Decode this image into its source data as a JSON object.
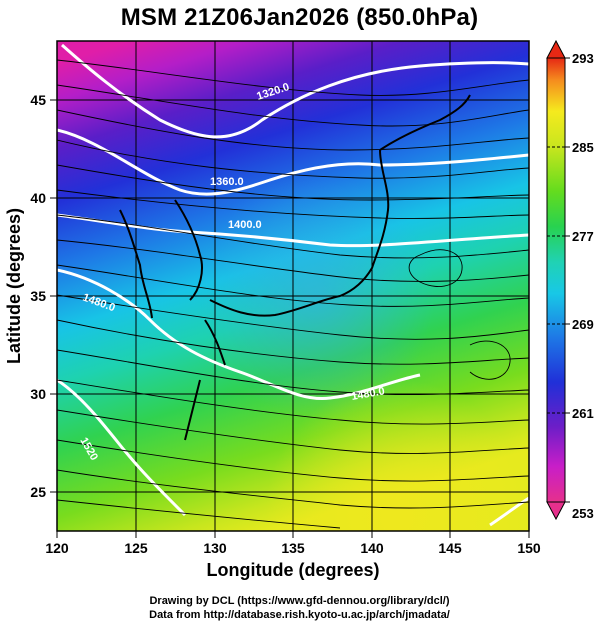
{
  "title": "MSM 21Z06Jan2026 (850.0hPa)",
  "map": {
    "xlabel": "Longitude (degrees)",
    "ylabel": "Latitude  (degrees)",
    "lon_range": [
      120,
      150
    ],
    "lat_range": [
      23,
      48
    ],
    "lon_ticks": [
      "120",
      "125",
      "130",
      "135",
      "140",
      "145",
      "150"
    ],
    "lat_ticks": [
      "25",
      "30",
      "35",
      "40",
      "45"
    ],
    "grid": true,
    "field": "temperature (K) shaded, geopotential height contours, wind streamlines"
  },
  "contour_labels": [
    "1320.0",
    "1360.0",
    "1400.0",
    "1480.0",
    "1480.0",
    "1520"
  ],
  "colorbar": {
    "ticks": [
      "293",
      "285",
      "277",
      "269",
      "261",
      "253"
    ],
    "range": [
      253,
      293
    ],
    "colors": [
      "#e6308c",
      "#c81ec8",
      "#6c1ec8",
      "#2030d8",
      "#1e78e6",
      "#18c8e6",
      "#20d2b4",
      "#28d250",
      "#64dc1e",
      "#c8e61e",
      "#f5ea1e",
      "#f58c1e",
      "#e62814"
    ]
  },
  "credits": {
    "line1": "Drawing by DCL (https://www.gfd-dennou.org/library/dcl/)",
    "line2": "Data from http://database.rish.kyoto-u.ac.jp/arch/jmadata/"
  }
}
